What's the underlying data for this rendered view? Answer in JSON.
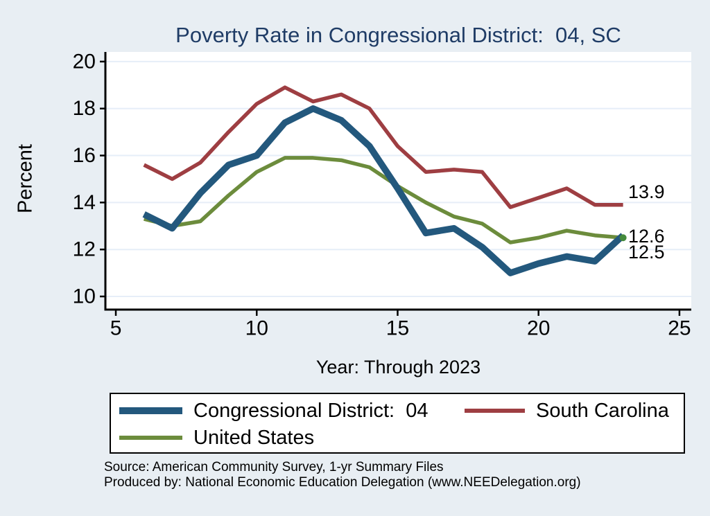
{
  "title": "Poverty Rate in Congressional District:  04, SC",
  "chart_data": {
    "type": "line",
    "title": "Poverty Rate in Congressional District:  04, SC",
    "x_label": "Year: Through 2023",
    "y_label": "Percent",
    "x": [
      6,
      7,
      8,
      9,
      10,
      11,
      12,
      13,
      14,
      15,
      16,
      17,
      18,
      19,
      20,
      21,
      22,
      23
    ],
    "x_ticks": [
      5,
      10,
      15,
      20,
      25
    ],
    "y_ticks": [
      10,
      12,
      14,
      16,
      18,
      20
    ],
    "xlim": [
      4.63,
      25.42
    ],
    "ylim": [
      9.44,
      20.41
    ],
    "grid": true,
    "legend_position": "bottom",
    "series": [
      {
        "name": "Congressional District:  04",
        "color": "#23587d",
        "stroke_width": 9.5,
        "end_label": "12.6",
        "values": [
          13.5,
          12.9,
          14.4,
          15.6,
          16.0,
          17.4,
          18.0,
          17.5,
          16.4,
          14.6,
          12.7,
          12.9,
          12.1,
          11.0,
          11.4,
          11.7,
          11.5,
          12.6
        ]
      },
      {
        "name": "South Carolina",
        "color": "#9e3e42",
        "stroke_width": 5.5,
        "end_label": "13.9",
        "values": [
          15.6,
          15.0,
          15.7,
          17.0,
          18.2,
          18.9,
          18.3,
          18.6,
          18.0,
          16.4,
          15.3,
          15.4,
          15.3,
          13.8,
          14.2,
          14.6,
          13.9,
          13.9
        ]
      },
      {
        "name": "United States",
        "color": "#6c8c3c",
        "stroke_width": 5.5,
        "end_label": "12.5",
        "end_marker": true,
        "end_marker_color": "#448a3c",
        "values": [
          13.3,
          13.0,
          13.2,
          14.3,
          15.3,
          15.9,
          15.9,
          15.8,
          15.5,
          14.7,
          14.0,
          13.4,
          13.1,
          12.3,
          12.5,
          12.8,
          12.6,
          12.5
        ]
      }
    ]
  },
  "captions": {
    "source": "Source: American Community Survey, 1-yr Summary Files",
    "produced_by": "Produced by: National Economic Education Delegation (www.NEEDelegation.org)"
  },
  "colors": {
    "background": "#e8eef3",
    "plot_background": "#ffffff",
    "gridline": "#e6eef8",
    "axis": "#000000",
    "title": "#1f3c66",
    "legend_background": "#ffffff"
  }
}
